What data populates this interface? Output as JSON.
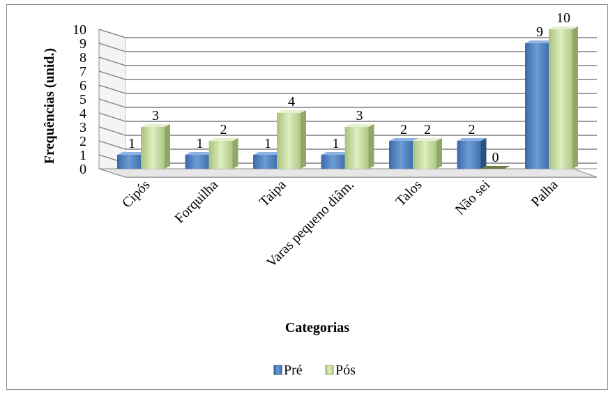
{
  "chart_data": {
    "type": "bar",
    "title": "",
    "xlabel": "Categorias",
    "ylabel": "Frequências (unid.)",
    "categories": [
      "Cipós",
      "Forquilha",
      "Taipa",
      "Varas pequeno diâm.",
      "Talos",
      "Não sei",
      "Palha"
    ],
    "series": [
      {
        "name": "Pré",
        "values": [
          1,
          1,
          1,
          1,
          2,
          2,
          9
        ],
        "color": "#4f81bd"
      },
      {
        "name": "Pós",
        "values": [
          3,
          2,
          4,
          3,
          2,
          0,
          10
        ],
        "color": "#c3d69b"
      }
    ],
    "ylim": [
      0,
      10
    ],
    "yticks": [
      "0",
      "1",
      "2",
      "3",
      "4",
      "5",
      "6",
      "7",
      "8",
      "9",
      "10"
    ],
    "grid": true,
    "legend_position": "bottom",
    "style": "3d-clustered-column"
  }
}
